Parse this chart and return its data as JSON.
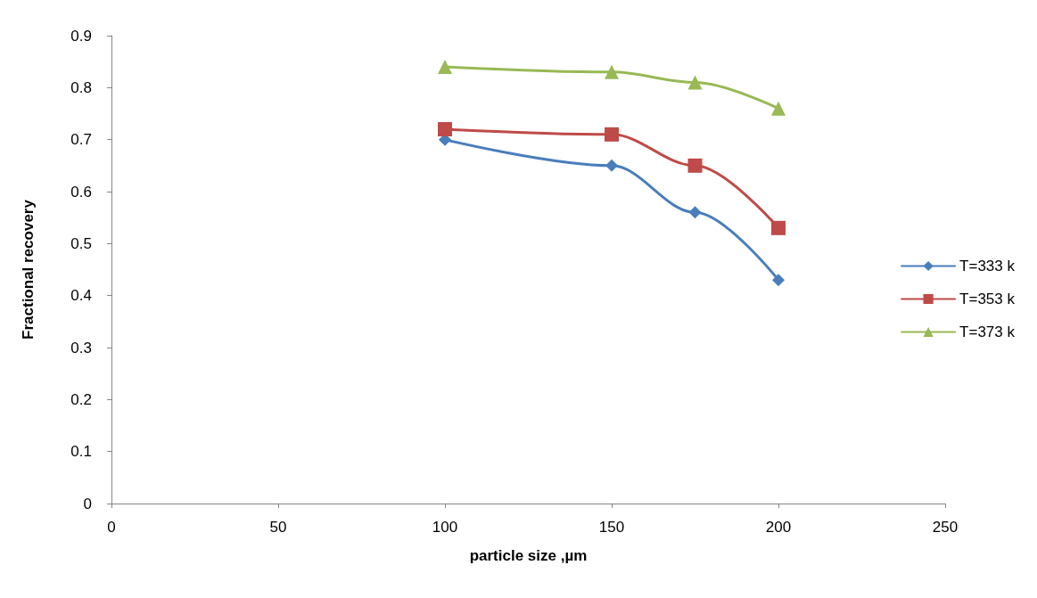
{
  "chart_data": {
    "type": "line",
    "xlabel": "particle size ,µm",
    "ylabel": "Fractional recovery",
    "x": [
      100,
      150,
      175,
      200
    ],
    "series": [
      {
        "name": "T=333 k",
        "color": "#4a7ebb",
        "marker": "diamond",
        "values": [
          0.7,
          0.65,
          0.56,
          0.43
        ]
      },
      {
        "name": "T=353 k",
        "color": "#be4b48",
        "marker": "square",
        "values": [
          0.72,
          0.71,
          0.65,
          0.53
        ]
      },
      {
        "name": "T=373 k",
        "color": "#98b954",
        "marker": "triangle",
        "values": [
          0.84,
          0.83,
          0.81,
          0.76
        ]
      }
    ],
    "xlim": [
      0,
      250
    ],
    "xticks": [
      0,
      50,
      100,
      150,
      200,
      250
    ],
    "ylim": [
      0,
      0.9
    ],
    "yticks": [
      0,
      0.1,
      0.2,
      0.3,
      0.4,
      0.5,
      0.6,
      0.7,
      0.8,
      0.9
    ],
    "grid": false,
    "legend": "right",
    "line_style": "solid"
  }
}
